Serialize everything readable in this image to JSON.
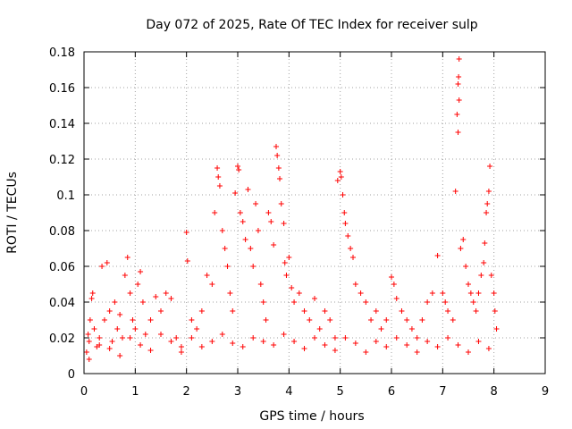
{
  "chart_data": {
    "type": "scatter",
    "title": "Day 072 of 2025, Rate Of TEC Index for receiver sulp",
    "xlabel": "GPS time / hours",
    "ylabel": "ROTI / TECUs",
    "xlim": [
      0,
      9
    ],
    "ylim": [
      0,
      0.18
    ],
    "xticks": [
      0,
      1,
      2,
      3,
      4,
      5,
      6,
      7,
      8,
      9
    ],
    "yticks": [
      0,
      0.02,
      0.04,
      0.06,
      0.08,
      0.1,
      0.12,
      0.14,
      0.16,
      0.18
    ],
    "xtick_labels": [
      "0",
      "1",
      "2",
      "3",
      "4",
      "5",
      "6",
      "7",
      "8",
      "9"
    ],
    "ytick_labels": [
      "0",
      "0.02",
      "0.04",
      "0.06",
      "0.08",
      "0.1",
      "0.12",
      "0.14",
      "0.16",
      "0.18"
    ],
    "grid": true,
    "marker": "+",
    "color": "#ff0000",
    "series": [
      {
        "name": "ROTI",
        "points": [
          [
            0.05,
            0.012
          ],
          [
            0.08,
            0.022
          ],
          [
            0.1,
            0.018
          ],
          [
            0.12,
            0.03
          ],
          [
            0.15,
            0.042
          ],
          [
            0.17,
            0.045
          ],
          [
            0.2,
            0.025
          ],
          [
            0.25,
            0.015
          ],
          [
            0.3,
            0.02
          ],
          [
            0.35,
            0.06
          ],
          [
            0.4,
            0.03
          ],
          [
            0.45,
            0.062
          ],
          [
            0.5,
            0.035
          ],
          [
            0.55,
            0.018
          ],
          [
            0.6,
            0.04
          ],
          [
            0.65,
            0.025
          ],
          [
            0.7,
            0.033
          ],
          [
            0.75,
            0.02
          ],
          [
            0.8,
            0.055
          ],
          [
            0.85,
            0.065
          ],
          [
            0.9,
            0.045
          ],
          [
            0.95,
            0.03
          ],
          [
            1.0,
            0.025
          ],
          [
            1.05,
            0.05
          ],
          [
            1.1,
            0.057
          ],
          [
            1.15,
            0.04
          ],
          [
            1.2,
            0.022
          ],
          [
            1.3,
            0.03
          ],
          [
            1.4,
            0.043
          ],
          [
            1.5,
            0.035
          ],
          [
            1.6,
            0.045
          ],
          [
            1.7,
            0.042
          ],
          [
            1.8,
            0.02
          ],
          [
            1.9,
            0.015
          ],
          [
            2.0,
            0.079
          ],
          [
            2.02,
            0.063
          ],
          [
            2.1,
            0.03
          ],
          [
            2.2,
            0.025
          ],
          [
            2.3,
            0.035
          ],
          [
            2.4,
            0.055
          ],
          [
            2.5,
            0.05
          ],
          [
            2.55,
            0.09
          ],
          [
            2.6,
            0.115
          ],
          [
            2.62,
            0.11
          ],
          [
            2.65,
            0.105
          ],
          [
            2.7,
            0.08
          ],
          [
            2.75,
            0.07
          ],
          [
            2.8,
            0.06
          ],
          [
            2.85,
            0.045
          ],
          [
            2.9,
            0.035
          ],
          [
            2.95,
            0.101
          ],
          [
            3.0,
            0.116
          ],
          [
            3.02,
            0.114
          ],
          [
            3.05,
            0.09
          ],
          [
            3.1,
            0.085
          ],
          [
            3.15,
            0.075
          ],
          [
            3.2,
            0.103
          ],
          [
            3.25,
            0.07
          ],
          [
            3.3,
            0.06
          ],
          [
            3.35,
            0.095
          ],
          [
            3.4,
            0.08
          ],
          [
            3.45,
            0.05
          ],
          [
            3.5,
            0.04
          ],
          [
            3.55,
            0.03
          ],
          [
            3.6,
            0.09
          ],
          [
            3.65,
            0.085
          ],
          [
            3.7,
            0.072
          ],
          [
            3.75,
            0.127
          ],
          [
            3.77,
            0.122
          ],
          [
            3.8,
            0.115
          ],
          [
            3.82,
            0.109
          ],
          [
            3.85,
            0.095
          ],
          [
            3.9,
            0.084
          ],
          [
            3.92,
            0.062
          ],
          [
            3.95,
            0.055
          ],
          [
            4.0,
            0.065
          ],
          [
            4.05,
            0.048
          ],
          [
            4.1,
            0.04
          ],
          [
            4.2,
            0.045
          ],
          [
            4.3,
            0.035
          ],
          [
            4.4,
            0.03
          ],
          [
            4.5,
            0.042
          ],
          [
            4.6,
            0.025
          ],
          [
            4.7,
            0.035
          ],
          [
            4.8,
            0.03
          ],
          [
            4.9,
            0.02
          ],
          [
            4.95,
            0.108
          ],
          [
            5.0,
            0.113
          ],
          [
            5.02,
            0.11
          ],
          [
            5.05,
            0.1
          ],
          [
            5.08,
            0.09
          ],
          [
            5.1,
            0.084
          ],
          [
            5.15,
            0.077
          ],
          [
            5.2,
            0.07
          ],
          [
            5.25,
            0.065
          ],
          [
            5.3,
            0.05
          ],
          [
            5.4,
            0.045
          ],
          [
            5.5,
            0.04
          ],
          [
            5.6,
            0.03
          ],
          [
            5.7,
            0.035
          ],
          [
            5.8,
            0.025
          ],
          [
            5.9,
            0.03
          ],
          [
            6.0,
            0.054
          ],
          [
            6.05,
            0.05
          ],
          [
            6.1,
            0.042
          ],
          [
            6.2,
            0.035
          ],
          [
            6.3,
            0.03
          ],
          [
            6.4,
            0.025
          ],
          [
            6.5,
            0.02
          ],
          [
            6.6,
            0.03
          ],
          [
            6.7,
            0.04
          ],
          [
            6.8,
            0.045
          ],
          [
            6.9,
            0.066
          ],
          [
            7.0,
            0.045
          ],
          [
            7.05,
            0.04
          ],
          [
            7.1,
            0.035
          ],
          [
            7.2,
            0.03
          ],
          [
            7.25,
            0.102
          ],
          [
            7.28,
            0.145
          ],
          [
            7.3,
            0.135
          ],
          [
            7.32,
            0.153
          ],
          [
            7.3,
            0.162
          ],
          [
            7.31,
            0.166
          ],
          [
            7.32,
            0.176
          ],
          [
            7.35,
            0.07
          ],
          [
            7.4,
            0.075
          ],
          [
            7.45,
            0.06
          ],
          [
            7.5,
            0.05
          ],
          [
            7.55,
            0.045
          ],
          [
            7.6,
            0.04
          ],
          [
            7.65,
            0.035
          ],
          [
            7.7,
            0.045
          ],
          [
            7.75,
            0.055
          ],
          [
            7.8,
            0.062
          ],
          [
            7.82,
            0.073
          ],
          [
            7.85,
            0.09
          ],
          [
            7.87,
            0.095
          ],
          [
            7.9,
            0.102
          ],
          [
            7.92,
            0.116
          ],
          [
            7.95,
            0.055
          ],
          [
            8.0,
            0.045
          ],
          [
            8.02,
            0.035
          ],
          [
            8.05,
            0.025
          ],
          [
            0.1,
            0.008
          ],
          [
            0.3,
            0.016
          ],
          [
            0.5,
            0.014
          ],
          [
            0.7,
            0.01
          ],
          [
            0.9,
            0.02
          ],
          [
            1.1,
            0.016
          ],
          [
            1.3,
            0.013
          ],
          [
            1.5,
            0.022
          ],
          [
            1.7,
            0.018
          ],
          [
            1.9,
            0.012
          ],
          [
            2.1,
            0.02
          ],
          [
            2.3,
            0.015
          ],
          [
            2.5,
            0.018
          ],
          [
            2.7,
            0.022
          ],
          [
            2.9,
            0.017
          ],
          [
            3.1,
            0.015
          ],
          [
            3.3,
            0.02
          ],
          [
            3.5,
            0.018
          ],
          [
            3.7,
            0.016
          ],
          [
            3.9,
            0.022
          ],
          [
            4.1,
            0.018
          ],
          [
            4.3,
            0.014
          ],
          [
            4.5,
            0.02
          ],
          [
            4.7,
            0.016
          ],
          [
            4.9,
            0.013
          ],
          [
            5.1,
            0.02
          ],
          [
            5.3,
            0.017
          ],
          [
            5.5,
            0.012
          ],
          [
            5.7,
            0.018
          ],
          [
            5.9,
            0.015
          ],
          [
            6.1,
            0.02
          ],
          [
            6.3,
            0.016
          ],
          [
            6.5,
            0.012
          ],
          [
            6.7,
            0.018
          ],
          [
            6.9,
            0.015
          ],
          [
            7.1,
            0.02
          ],
          [
            7.3,
            0.016
          ],
          [
            7.5,
            0.012
          ],
          [
            7.7,
            0.018
          ],
          [
            7.9,
            0.014
          ]
        ]
      }
    ]
  }
}
